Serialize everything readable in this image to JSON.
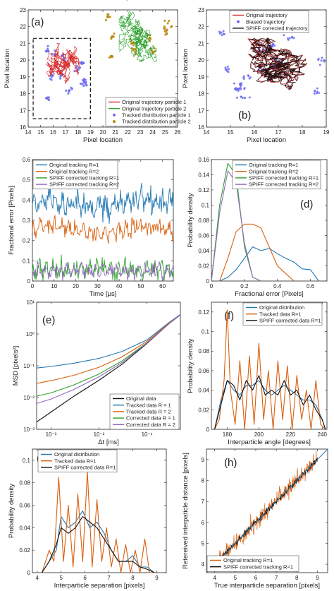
{
  "chart_data": [
    {
      "type": "scatter",
      "panel": "(a)",
      "xlabel": "Pixel location",
      "ylabel": "Pixel location",
      "xlim": [
        14,
        26
      ],
      "ylim": [
        16,
        23
      ],
      "xticks": [
        14,
        15,
        16,
        17,
        18,
        19,
        20,
        21,
        22,
        23,
        24,
        25,
        26
      ],
      "yticks": [
        16,
        17,
        18,
        19,
        20,
        21,
        22,
        23
      ],
      "legend_position": "bottom-right",
      "series": [
        {
          "name": "Original trajectory particle 1",
          "color": "#d62728",
          "style": "line",
          "center": [
            17,
            19.3
          ]
        },
        {
          "name": "Original trajectory particle 2",
          "color": "#2ca02c",
          "style": "line",
          "center": [
            22.8,
            21.4
          ]
        },
        {
          "name": "Tracked distribution particle 1",
          "color": "#6b6bf0",
          "style": "points",
          "center": [
            17,
            19.3
          ]
        },
        {
          "name": "Tracked distribution particle 2",
          "color": "#b8860b",
          "style": "points",
          "center": [
            22.8,
            21.4
          ]
        }
      ],
      "annotations": [
        "dashed box around particle 1 region"
      ]
    },
    {
      "type": "scatter",
      "panel": "(b)",
      "xlabel": "Pixel location",
      "ylabel": "Pixel location",
      "xlim": [
        14,
        19
      ],
      "ylim": [
        16,
        23
      ],
      "xticks": [
        14,
        15,
        16,
        17,
        18,
        19
      ],
      "yticks": [
        16,
        17,
        18,
        19,
        20,
        21,
        22,
        23
      ],
      "legend_position": "top",
      "series": [
        {
          "name": "Original trajectory",
          "color": "#d62728",
          "style": "line"
        },
        {
          "name": "Biased trajectory",
          "color": "#6b6bf0",
          "style": "points"
        },
        {
          "name": "SPIFF corrected trajectory",
          "color": "#111111",
          "style": "line"
        }
      ]
    },
    {
      "type": "line",
      "panel": "(c)",
      "xlabel": "Time [μs]",
      "ylabel": "Fractional error [Pixels]",
      "xlim": [
        0,
        65
      ],
      "ylim": [
        0,
        0.6
      ],
      "xticks": [
        0,
        10,
        20,
        30,
        40,
        50,
        60
      ],
      "yticks": [
        0,
        0.1,
        0.2,
        0.3,
        0.4,
        0.5,
        0.6
      ],
      "legend_position": "top",
      "series": [
        {
          "name": "Original tracking R=1",
          "color": "#1f77b4",
          "mean": 0.38,
          "amplitude": 0.05
        },
        {
          "name": "Original tracking R=2",
          "color": "#d95f0e",
          "mean": 0.25,
          "amplitude": 0.035
        },
        {
          "name": "SPIFF corrected tracking R=1",
          "color": "#2ca02c",
          "mean": 0.06,
          "amplitude": 0.04
        },
        {
          "name": "SPIFF corrected tracking R=2",
          "color": "#9467bd",
          "mean": 0.05,
          "amplitude": 0.03
        }
      ]
    },
    {
      "type": "line",
      "panel": "(d)",
      "xlabel": "Fractional error [Pixels]",
      "ylabel": "Probability density",
      "xlim": [
        0,
        0.7
      ],
      "ylim": [
        0,
        0.16
      ],
      "xticks": [
        0,
        0.2,
        0.4,
        0.6
      ],
      "yticks": [
        0,
        0.02,
        0.04,
        0.06,
        0.08,
        0.1,
        0.12,
        0.14,
        0.16
      ],
      "legend_position": "top-right",
      "series": [
        {
          "name": "Original tracking R=1",
          "color": "#1f77b4",
          "x": [
            0.05,
            0.1,
            0.15,
            0.2,
            0.25,
            0.3,
            0.35,
            0.4,
            0.45,
            0.5,
            0.55,
            0.6,
            0.65
          ],
          "y": [
            0.0,
            0.005,
            0.015,
            0.03,
            0.045,
            0.04,
            0.043,
            0.036,
            0.03,
            0.025,
            0.016,
            0.015,
            0.0
          ]
        },
        {
          "name": "Original tracking R=2",
          "color": "#d95f0e",
          "x": [
            0.05,
            0.1,
            0.15,
            0.2,
            0.25,
            0.3,
            0.35,
            0.4,
            0.45,
            0.5
          ],
          "y": [
            0.0,
            0.03,
            0.065,
            0.075,
            0.075,
            0.07,
            0.045,
            0.02,
            0.01,
            0.0
          ]
        },
        {
          "name": "SPIFF corrected tracking R=1",
          "color": "#2ca02c",
          "x": [
            0.0,
            0.05,
            0.1,
            0.15,
            0.2,
            0.25,
            0.3
          ],
          "y": [
            0.0,
            0.1,
            0.155,
            0.14,
            0.045,
            0.005,
            0.0
          ]
        },
        {
          "name": "SPIFF corrected tracking R=2",
          "color": "#9467bd",
          "x": [
            0.0,
            0.05,
            0.1,
            0.15,
            0.2,
            0.25,
            0.3
          ],
          "y": [
            0.0,
            0.09,
            0.145,
            0.13,
            0.05,
            0.005,
            0.0
          ]
        }
      ]
    },
    {
      "type": "line",
      "panel": "(e)",
      "xlabel": "Δt [ms]",
      "ylabel": "MSD [pixels²]",
      "xscale": "log",
      "yscale": "log",
      "xlim": [
        0.0005,
        0.5
      ],
      "ylim": [
        0.001,
        10
      ],
      "xticks": [
        0.001,
        0.01,
        0.1
      ],
      "xticklabels": [
        "10⁻³",
        "10⁻²",
        "10⁻¹"
      ],
      "yticks": [
        0.001,
        0.01,
        0.1,
        1,
        10
      ],
      "yticklabels": [
        "10⁻³",
        "10⁻²",
        "10⁻¹",
        "10⁰",
        "10¹"
      ],
      "legend_position": "bottom-right",
      "series": [
        {
          "name": "Original data",
          "color": "#111111",
          "x": [
            0.0005,
            0.001,
            0.003,
            0.01,
            0.03,
            0.1,
            0.3,
            0.5
          ],
          "y": [
            0.0017,
            0.0035,
            0.011,
            0.035,
            0.11,
            0.5,
            2.2,
            4.0
          ]
        },
        {
          "name": "Tracked data R = 1",
          "color": "#1f77b4",
          "x": [
            0.0005,
            0.001,
            0.003,
            0.01,
            0.03,
            0.1,
            0.3,
            0.5
          ],
          "y": [
            0.085,
            0.095,
            0.12,
            0.17,
            0.28,
            0.65,
            2.4,
            4.1
          ]
        },
        {
          "name": "Tracked data R = 2",
          "color": "#d95f0e",
          "x": [
            0.0005,
            0.001,
            0.003,
            0.01,
            0.03,
            0.1,
            0.3,
            0.5
          ],
          "y": [
            0.028,
            0.034,
            0.05,
            0.09,
            0.19,
            0.58,
            2.3,
            4.0
          ]
        },
        {
          "name": "Corrected data R = 1",
          "color": "#2ca02c",
          "x": [
            0.0005,
            0.001,
            0.003,
            0.01,
            0.03,
            0.1,
            0.3,
            0.5
          ],
          "y": [
            0.011,
            0.014,
            0.025,
            0.055,
            0.14,
            0.53,
            2.2,
            4.0
          ]
        },
        {
          "name": "Corrected data R = 2",
          "color": "#9467bd",
          "x": [
            0.0005,
            0.001,
            0.003,
            0.01,
            0.03,
            0.1,
            0.3,
            0.5
          ],
          "y": [
            0.0065,
            0.009,
            0.018,
            0.045,
            0.125,
            0.52,
            2.2,
            4.0
          ]
        }
      ]
    },
    {
      "type": "line",
      "panel": "(f)",
      "xlabel": "Interparticle angle [degrees]",
      "ylabel": "Probability density",
      "xlim": [
        170,
        243
      ],
      "ylim": [
        0,
        0.13
      ],
      "xticks": [
        180,
        200,
        220,
        240
      ],
      "yticks": [
        0,
        0.02,
        0.04,
        0.06,
        0.08,
        0.1,
        0.12
      ],
      "legend_position": "top-right",
      "series": [
        {
          "name": "Original distribution",
          "color": "#1f77b4",
          "x": [
            172,
            176,
            180,
            184,
            188,
            192,
            196,
            200,
            204,
            208,
            212,
            216,
            220,
            224,
            228,
            232,
            236,
            240,
            242
          ],
          "y": [
            0.0,
            0.03,
            0.05,
            0.04,
            0.035,
            0.045,
            0.045,
            0.05,
            0.04,
            0.035,
            0.04,
            0.045,
            0.04,
            0.035,
            0.03,
            0.03,
            0.025,
            0.01,
            0.0
          ]
        },
        {
          "name": "Tracked data R=1",
          "color": "#d95f0e",
          "x": [
            172,
            175,
            178,
            180,
            182,
            185,
            188,
            191,
            194,
            197,
            200,
            203,
            206,
            209,
            212,
            215,
            218,
            221,
            224,
            227,
            230,
            233,
            236,
            239,
            242
          ],
          "y": [
            0.0,
            0.01,
            0.05,
            0.122,
            0.04,
            0.005,
            0.07,
            0.0,
            0.075,
            0.005,
            0.088,
            0.01,
            0.06,
            0.0,
            0.07,
            0.01,
            0.065,
            0.0,
            0.055,
            0.01,
            0.04,
            0.0,
            0.05,
            0.005,
            0.0
          ]
        },
        {
          "name": "SPIFF corrected data R=1",
          "color": "#111111",
          "x": [
            172,
            176,
            180,
            184,
            188,
            192,
            196,
            200,
            204,
            208,
            212,
            216,
            220,
            224,
            228,
            232,
            236,
            240,
            242
          ],
          "y": [
            0.0,
            0.025,
            0.05,
            0.045,
            0.03,
            0.05,
            0.04,
            0.055,
            0.035,
            0.04,
            0.035,
            0.05,
            0.035,
            0.04,
            0.025,
            0.035,
            0.02,
            0.01,
            0.0
          ]
        }
      ]
    },
    {
      "type": "line",
      "panel": "(g)",
      "xlabel": "Interparticle separation [pixels]",
      "ylabel": "Probability density",
      "xlim": [
        3.8,
        9.4
      ],
      "ylim": [
        0,
        0.11
      ],
      "xticks": [
        4,
        5,
        6,
        7,
        8,
        9
      ],
      "yticks": [
        0,
        0.02,
        0.04,
        0.06,
        0.08,
        0.1
      ],
      "legend_position": "top",
      "series": [
        {
          "name": "Original distribution",
          "color": "#1f77b4",
          "x": [
            4.2,
            4.5,
            4.8,
            5.0,
            5.3,
            5.6,
            5.9,
            6.2,
            6.5,
            6.8,
            7.1,
            7.4,
            7.7,
            8.0,
            8.3,
            8.6,
            8.9
          ],
          "y": [
            0.0,
            0.01,
            0.02,
            0.05,
            0.04,
            0.045,
            0.055,
            0.04,
            0.045,
            0.035,
            0.02,
            0.01,
            0.01,
            0.015,
            0.005,
            0.005,
            0.0
          ]
        },
        {
          "name": "Tracked data R=1",
          "color": "#d95f0e",
          "x": [
            4.2,
            4.5,
            4.7,
            4.9,
            5.1,
            5.3,
            5.5,
            5.7,
            5.9,
            6.1,
            6.3,
            6.5,
            6.7,
            6.9,
            7.1,
            7.3,
            7.5,
            7.7,
            7.9,
            8.1,
            8.3,
            8.5,
            8.7,
            8.9
          ],
          "y": [
            0.0,
            0.02,
            0.01,
            0.085,
            0.01,
            0.06,
            0.005,
            0.07,
            0.01,
            0.09,
            0.005,
            0.065,
            0.01,
            0.04,
            0.005,
            0.03,
            0.0,
            0.025,
            0.0,
            0.02,
            0.0,
            0.03,
            0.0,
            0.0
          ]
        },
        {
          "name": "SPIFF corrected data R=1",
          "color": "#111111",
          "x": [
            4.2,
            4.5,
            4.8,
            5.0,
            5.3,
            5.6,
            5.9,
            6.2,
            6.5,
            6.8,
            7.1,
            7.4,
            7.7,
            8.0,
            8.3,
            8.6,
            8.9
          ],
          "y": [
            0.0,
            0.01,
            0.025,
            0.04,
            0.035,
            0.04,
            0.05,
            0.045,
            0.04,
            0.03,
            0.02,
            0.01,
            0.01,
            0.01,
            0.005,
            0.003,
            0.0
          ]
        }
      ]
    },
    {
      "type": "scatter",
      "panel": "(h)",
      "xlabel": "True interparticle separation [pixels]",
      "ylabel": "Retereived interpaticle distance [pixels]",
      "xlim": [
        3.6,
        9.5
      ],
      "ylim": [
        3.6,
        9.5
      ],
      "xticks": [
        4,
        5,
        6,
        7,
        8,
        9
      ],
      "yticks": [
        4,
        5,
        6,
        7,
        8,
        9
      ],
      "legend_position": "bottom-right",
      "series": [
        {
          "name": "Original tracking R=1",
          "color": "#d95f0e",
          "x": [
            4.0,
            5.0,
            6.0,
            7.0,
            8.0,
            9.0
          ],
          "y": [
            4.0,
            5.0,
            6.0,
            7.0,
            8.0,
            9.0
          ],
          "spread": 0.35
        },
        {
          "name": "SPIFF corrected tracking R=1",
          "color": "#111111",
          "x": [
            4.0,
            5.0,
            6.0,
            7.0,
            8.0,
            9.0
          ],
          "y": [
            4.0,
            5.0,
            6.0,
            7.0,
            8.0,
            9.0
          ],
          "spread": 0.12
        },
        {
          "name": "",
          "color": "#1f77b4",
          "x": [
            3.6,
            9.5
          ],
          "y": [
            3.6,
            9.5
          ],
          "style": "reference-line"
        }
      ]
    }
  ]
}
